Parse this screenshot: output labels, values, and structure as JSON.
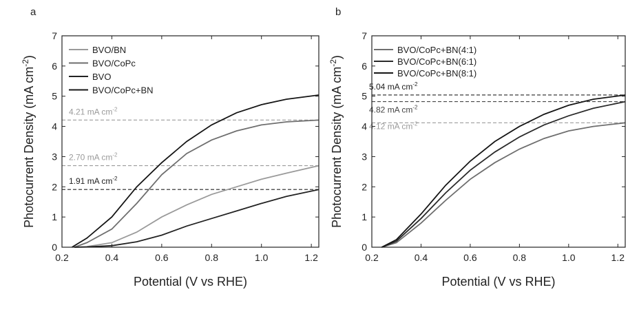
{
  "chart_data": [
    {
      "panel_label": "a",
      "type": "line",
      "xlabel": "Potential (V vs RHE)",
      "ylabel_main": "Photocurrent Density (mA cm",
      "ylabel_sup": "-2",
      "ylabel_close": ")",
      "xlim": [
        0.2,
        1.23
      ],
      "ylim": [
        0,
        7
      ],
      "xticks": [
        "0.2",
        "0.4",
        "0.6",
        "0.8",
        "1.0",
        "1.2"
      ],
      "yticks": [
        "0",
        "1",
        "2",
        "3",
        "4",
        "5",
        "6",
        "7"
      ],
      "legend_position": "top-left",
      "series": [
        {
          "name": "BVO/BN",
          "color": "#9a9a9a",
          "x": [
            0.25,
            0.3,
            0.4,
            0.5,
            0.6,
            0.7,
            0.8,
            0.9,
            1.0,
            1.1,
            1.23
          ],
          "y": [
            0,
            0.02,
            0.15,
            0.5,
            1.0,
            1.4,
            1.75,
            2.0,
            2.25,
            2.45,
            2.7
          ]
        },
        {
          "name": "BVO/CoPc",
          "color": "#6e6e6e",
          "x": [
            0.25,
            0.3,
            0.4,
            0.5,
            0.6,
            0.7,
            0.8,
            0.9,
            1.0,
            1.1,
            1.23
          ],
          "y": [
            0,
            0.15,
            0.6,
            1.45,
            2.4,
            3.1,
            3.55,
            3.85,
            4.05,
            4.15,
            4.21
          ]
        },
        {
          "name": "BVO",
          "color": "#222222",
          "x": [
            0.25,
            0.3,
            0.4,
            0.5,
            0.6,
            0.7,
            0.8,
            0.9,
            1.0,
            1.1,
            1.23
          ],
          "y": [
            0,
            0.01,
            0.05,
            0.18,
            0.4,
            0.7,
            0.95,
            1.2,
            1.45,
            1.68,
            1.91
          ]
        },
        {
          "name": "BVO/CoPc+BN",
          "color": "#151515",
          "x": [
            0.24,
            0.3,
            0.4,
            0.5,
            0.6,
            0.7,
            0.8,
            0.9,
            1.0,
            1.1,
            1.23
          ],
          "y": [
            0,
            0.3,
            1.0,
            2.0,
            2.8,
            3.5,
            4.05,
            4.45,
            4.72,
            4.9,
            5.04
          ]
        }
      ],
      "reference_lines": [
        {
          "y": 4.21,
          "label_value": "4.21 mA cm",
          "label_sup": "-2",
          "color": "#9a9a9a"
        },
        {
          "y": 2.7,
          "label_value": "2.70 mA cm",
          "label_sup": "-2",
          "color": "#9a9a9a"
        },
        {
          "y": 1.91,
          "label_value": "1.91 mA cm",
          "label_sup": "-2",
          "color": "#222222"
        }
      ]
    },
    {
      "panel_label": "b",
      "type": "line",
      "xlabel": "Potential (V vs RHE)",
      "ylabel_main": "Photocurrent Density (mA cm",
      "ylabel_sup": "-2",
      "ylabel_close": ")",
      "xlim": [
        0.2,
        1.23
      ],
      "ylim": [
        0,
        7
      ],
      "xticks": [
        "0.2",
        "0.4",
        "0.6",
        "0.8",
        "1.0",
        "1.2"
      ],
      "yticks": [
        "0",
        "1",
        "2",
        "3",
        "4",
        "5",
        "6",
        "7"
      ],
      "legend_position": "top-left",
      "series": [
        {
          "name": "BVO/CoPc+BN(4:1)",
          "color": "#6e6e6e",
          "x": [
            0.24,
            0.3,
            0.4,
            0.5,
            0.6,
            0.7,
            0.8,
            0.9,
            1.0,
            1.1,
            1.23
          ],
          "y": [
            0,
            0.15,
            0.8,
            1.55,
            2.25,
            2.8,
            3.25,
            3.6,
            3.85,
            4.0,
            4.12
          ]
        },
        {
          "name": "BVO/CoPc+BN(6:1)",
          "color": "#2a2a2a",
          "x": [
            0.24,
            0.3,
            0.4,
            0.5,
            0.6,
            0.7,
            0.8,
            0.9,
            1.0,
            1.1,
            1.23
          ],
          "y": [
            0,
            0.2,
            0.95,
            1.8,
            2.55,
            3.15,
            3.65,
            4.05,
            4.35,
            4.6,
            4.82
          ]
        },
        {
          "name": "BVO/CoPc+BN(8:1)",
          "color": "#151515",
          "x": [
            0.24,
            0.3,
            0.4,
            0.5,
            0.6,
            0.7,
            0.8,
            0.9,
            1.0,
            1.1,
            1.23
          ],
          "y": [
            0,
            0.25,
            1.1,
            2.05,
            2.85,
            3.5,
            4.0,
            4.4,
            4.7,
            4.9,
            5.04
          ]
        }
      ],
      "reference_lines": [
        {
          "y": 5.04,
          "label_value": "5.04 mA cm",
          "label_sup": "-2",
          "color": "#222222"
        },
        {
          "y": 4.82,
          "label_value": "4.82 mA cm",
          "label_sup": "-2",
          "color": "#444444"
        },
        {
          "y": 4.12,
          "label_value": "4.12 mA cm",
          "label_sup": "-2",
          "color": "#9a9a9a"
        }
      ]
    }
  ]
}
